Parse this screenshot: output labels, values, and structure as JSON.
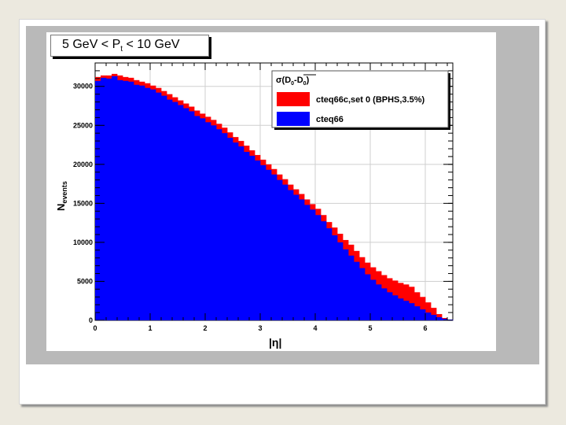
{
  "chart_data": {
    "type": "bar",
    "title": {
      "prefix": "5 GeV < P",
      "sub": "t",
      "suffix": " < 10 GeV"
    },
    "xlabel": "|η|",
    "ylabel": {
      "main": "N",
      "sub": "events"
    },
    "xlim": [
      0,
      6.5
    ],
    "ylim": [
      0,
      33000
    ],
    "xticks": [
      "0",
      "1",
      "2",
      "3",
      "4",
      "5",
      "6"
    ],
    "yticks": [
      "0",
      "5000",
      "10000",
      "15000",
      "20000",
      "25000",
      "30000"
    ],
    "bin_width": 0.1,
    "legend": {
      "header_prefix": "σ(D",
      "header_sub1": "0",
      "header_mid": "-D",
      "header_sub2": "0",
      "header_suffix": ")",
      "placement": "top-right"
    },
    "series": [
      {
        "name": "cteq66c,set 0 (BPHS,3.5%)",
        "color": "#ff0000",
        "values": [
          31200,
          31400,
          31400,
          31600,
          31400,
          31200,
          31100,
          30800,
          30600,
          30400,
          30100,
          29800,
          29400,
          29000,
          28600,
          28200,
          27800,
          27400,
          26900,
          26500,
          26100,
          25700,
          25200,
          24700,
          24100,
          23500,
          23000,
          22400,
          21800,
          21200,
          20600,
          20000,
          19400,
          18700,
          18100,
          17400,
          16800,
          16200,
          15500,
          14900,
          14300,
          13500,
          12600,
          11900,
          11100,
          10300,
          9700,
          8900,
          8100,
          7400,
          6800,
          6300,
          5800,
          5400,
          5100,
          4800,
          4600,
          4300,
          3600,
          3000,
          2300,
          1600,
          800,
          300,
          100
        ]
      },
      {
        "name": "cteq66",
        "color": "#0000ff",
        "values": [
          30700,
          31100,
          31000,
          31300,
          30800,
          30700,
          30600,
          30200,
          30100,
          29800,
          29600,
          29200,
          28800,
          28300,
          28000,
          27600,
          27200,
          26800,
          26200,
          25900,
          25400,
          25000,
          24500,
          24000,
          23400,
          22800,
          22300,
          21600,
          21100,
          20500,
          19900,
          19300,
          18700,
          18000,
          17400,
          16700,
          16100,
          15500,
          14800,
          14200,
          13500,
          12700,
          11800,
          10900,
          10000,
          9100,
          8300,
          7500,
          6700,
          5900,
          5200,
          4600,
          4100,
          3600,
          3200,
          2800,
          2500,
          2200,
          1800,
          1400,
          1000,
          700,
          400,
          200,
          100
        ]
      }
    ]
  }
}
